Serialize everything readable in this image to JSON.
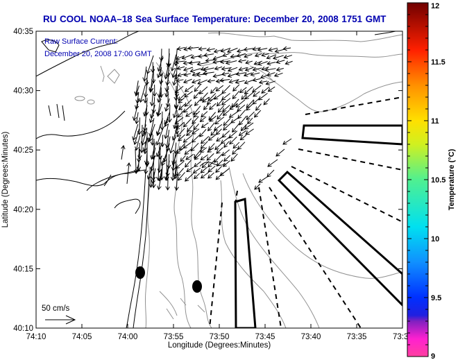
{
  "title": "RU COOL  NOAA–18  Sea Surface Temperature:  December 20, 2008 1751 GMT",
  "map": {
    "annotation": {
      "line1": "Raw Surface Current:",
      "line2": "December 20, 2008 17:00 GMT"
    },
    "scale_arrow_label": "50 cm/s",
    "x_axis": {
      "label": "Longitude (Degrees:Minutes)",
      "ticks": [
        "74:10",
        "74:05",
        "74:00",
        "73:55",
        "73:50",
        "73:45",
        "73:40",
        "73:35",
        "73:3"
      ]
    },
    "y_axis": {
      "label": "Latitude (Degrees:Minutes)",
      "ticks": [
        "40:35",
        "40:30",
        "40:25",
        "40:20",
        "40:15",
        "40:10"
      ]
    },
    "markers": [
      {
        "name": "station-marker-1",
        "lon": "74:00.8",
        "lat": "40:14.7"
      },
      {
        "name": "station-marker-2",
        "lon": "73:57.2",
        "lat": "40:13.5"
      }
    ]
  },
  "colorbar": {
    "label": "Temperature (°C)",
    "min": 9,
    "max": 12,
    "ticks": [
      "12",
      "11.5",
      "11",
      "10.5",
      "10",
      "9.5",
      "9"
    ],
    "stops": [
      {
        "value": 9.0,
        "color": "#ff40a0"
      },
      {
        "value": 9.15,
        "color": "#ff20d0"
      },
      {
        "value": 9.3,
        "color": "#8020c0"
      },
      {
        "value": 9.35,
        "color": "#2020e0"
      },
      {
        "value": 9.5,
        "color": "#0030ff"
      },
      {
        "value": 9.8,
        "color": "#1090ff"
      },
      {
        "value": 10.1,
        "color": "#00e0f0"
      },
      {
        "value": 10.5,
        "color": "#50f090"
      },
      {
        "value": 10.8,
        "color": "#d0f020"
      },
      {
        "value": 11.0,
        "color": "#ffe000"
      },
      {
        "value": 11.3,
        "color": "#ff9000"
      },
      {
        "value": 11.6,
        "color": "#ff2000"
      },
      {
        "value": 12.0,
        "color": "#700000"
      }
    ]
  },
  "colors": {
    "title": "#0000b0",
    "coastline": "#000000",
    "isobath": "#909090"
  }
}
